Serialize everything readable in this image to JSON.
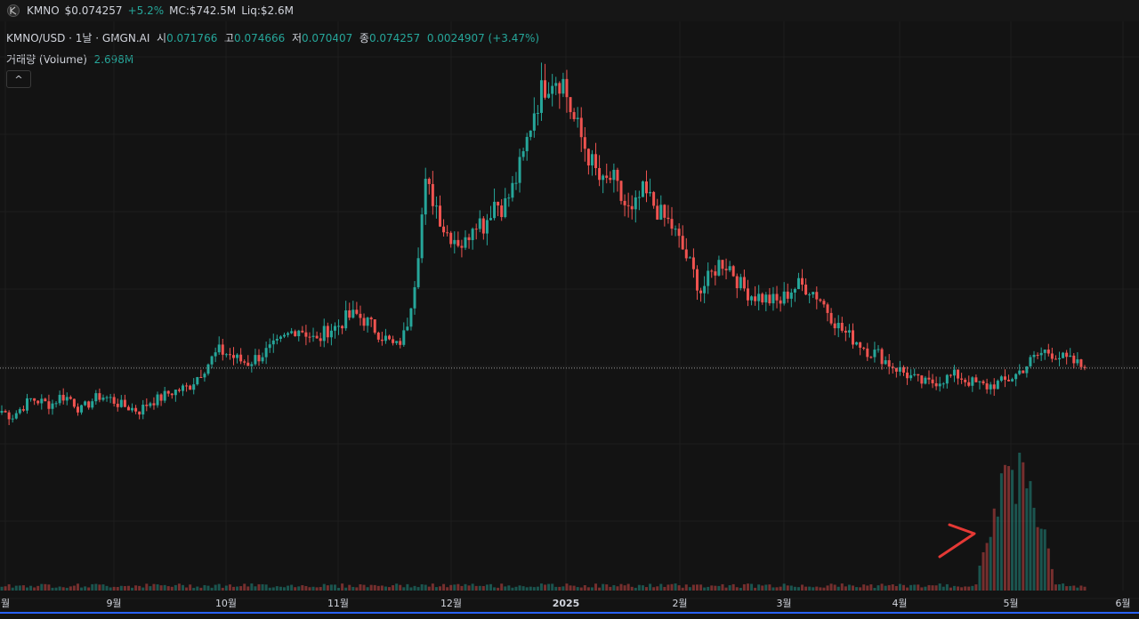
{
  "topbar": {
    "symbol": "KMNO",
    "price": "$0.074257",
    "change": "+5.2%",
    "mc": "MC:$742.5M",
    "liq": "Liq:$2.6M"
  },
  "legend": {
    "pair": "KMNO/USD · 1날 · GMGN.AI",
    "open_label": "시",
    "open": "0.071766",
    "high_label": "고",
    "high": "0.074666",
    "low_label": "저",
    "low": "0.070407",
    "close_label": "종",
    "close": "0.074257",
    "change": "0.0024907 (+3.47%)",
    "volume_label": "거래량 (Volume)",
    "volume": "2.698M"
  },
  "collapse_glyph": "^",
  "colors": {
    "up": "#26a69a",
    "down": "#ef5350",
    "grid": "#1e1e1e",
    "annotation": "#e53935"
  },
  "chart_data": {
    "type": "candlestick",
    "x_ticks": [
      "월",
      "9월",
      "10월",
      "11월",
      "12월",
      "2025",
      "2월",
      "3월",
      "4월",
      "5월",
      "6월"
    ],
    "last_price_line": 0.074257,
    "ylim": [
      0.0,
      0.19
    ],
    "close_series": [
      0.06,
      0.058,
      0.061,
      0.064,
      0.063,
      0.062,
      0.065,
      0.064,
      0.06,
      0.063,
      0.065,
      0.064,
      0.062,
      0.061,
      0.06,
      0.063,
      0.064,
      0.066,
      0.067,
      0.068,
      0.072,
      0.076,
      0.08,
      0.079,
      0.077,
      0.076,
      0.078,
      0.08,
      0.082,
      0.085,
      0.088,
      0.086,
      0.083,
      0.087,
      0.088,
      0.091,
      0.092,
      0.09,
      0.087,
      0.084,
      0.081,
      0.086,
      0.105,
      0.135,
      0.13,
      0.12,
      0.118,
      0.115,
      0.125,
      0.122,
      0.13,
      0.128,
      0.135,
      0.145,
      0.16,
      0.168,
      0.172,
      0.17,
      0.158,
      0.15,
      0.142,
      0.135,
      0.138,
      0.13,
      0.125,
      0.133,
      0.13,
      0.125,
      0.122,
      0.115,
      0.108,
      0.1,
      0.105,
      0.11,
      0.108,
      0.102,
      0.099,
      0.098,
      0.097,
      0.096,
      0.1,
      0.102,
      0.101,
      0.098,
      0.093,
      0.088,
      0.085,
      0.083,
      0.08,
      0.079,
      0.076,
      0.074,
      0.072,
      0.07,
      0.069,
      0.07,
      0.071,
      0.072,
      0.07,
      0.069,
      0.068,
      0.069,
      0.07,
      0.072,
      0.075,
      0.078,
      0.08,
      0.079,
      0.077,
      0.076,
      0.0742
    ]
  }
}
